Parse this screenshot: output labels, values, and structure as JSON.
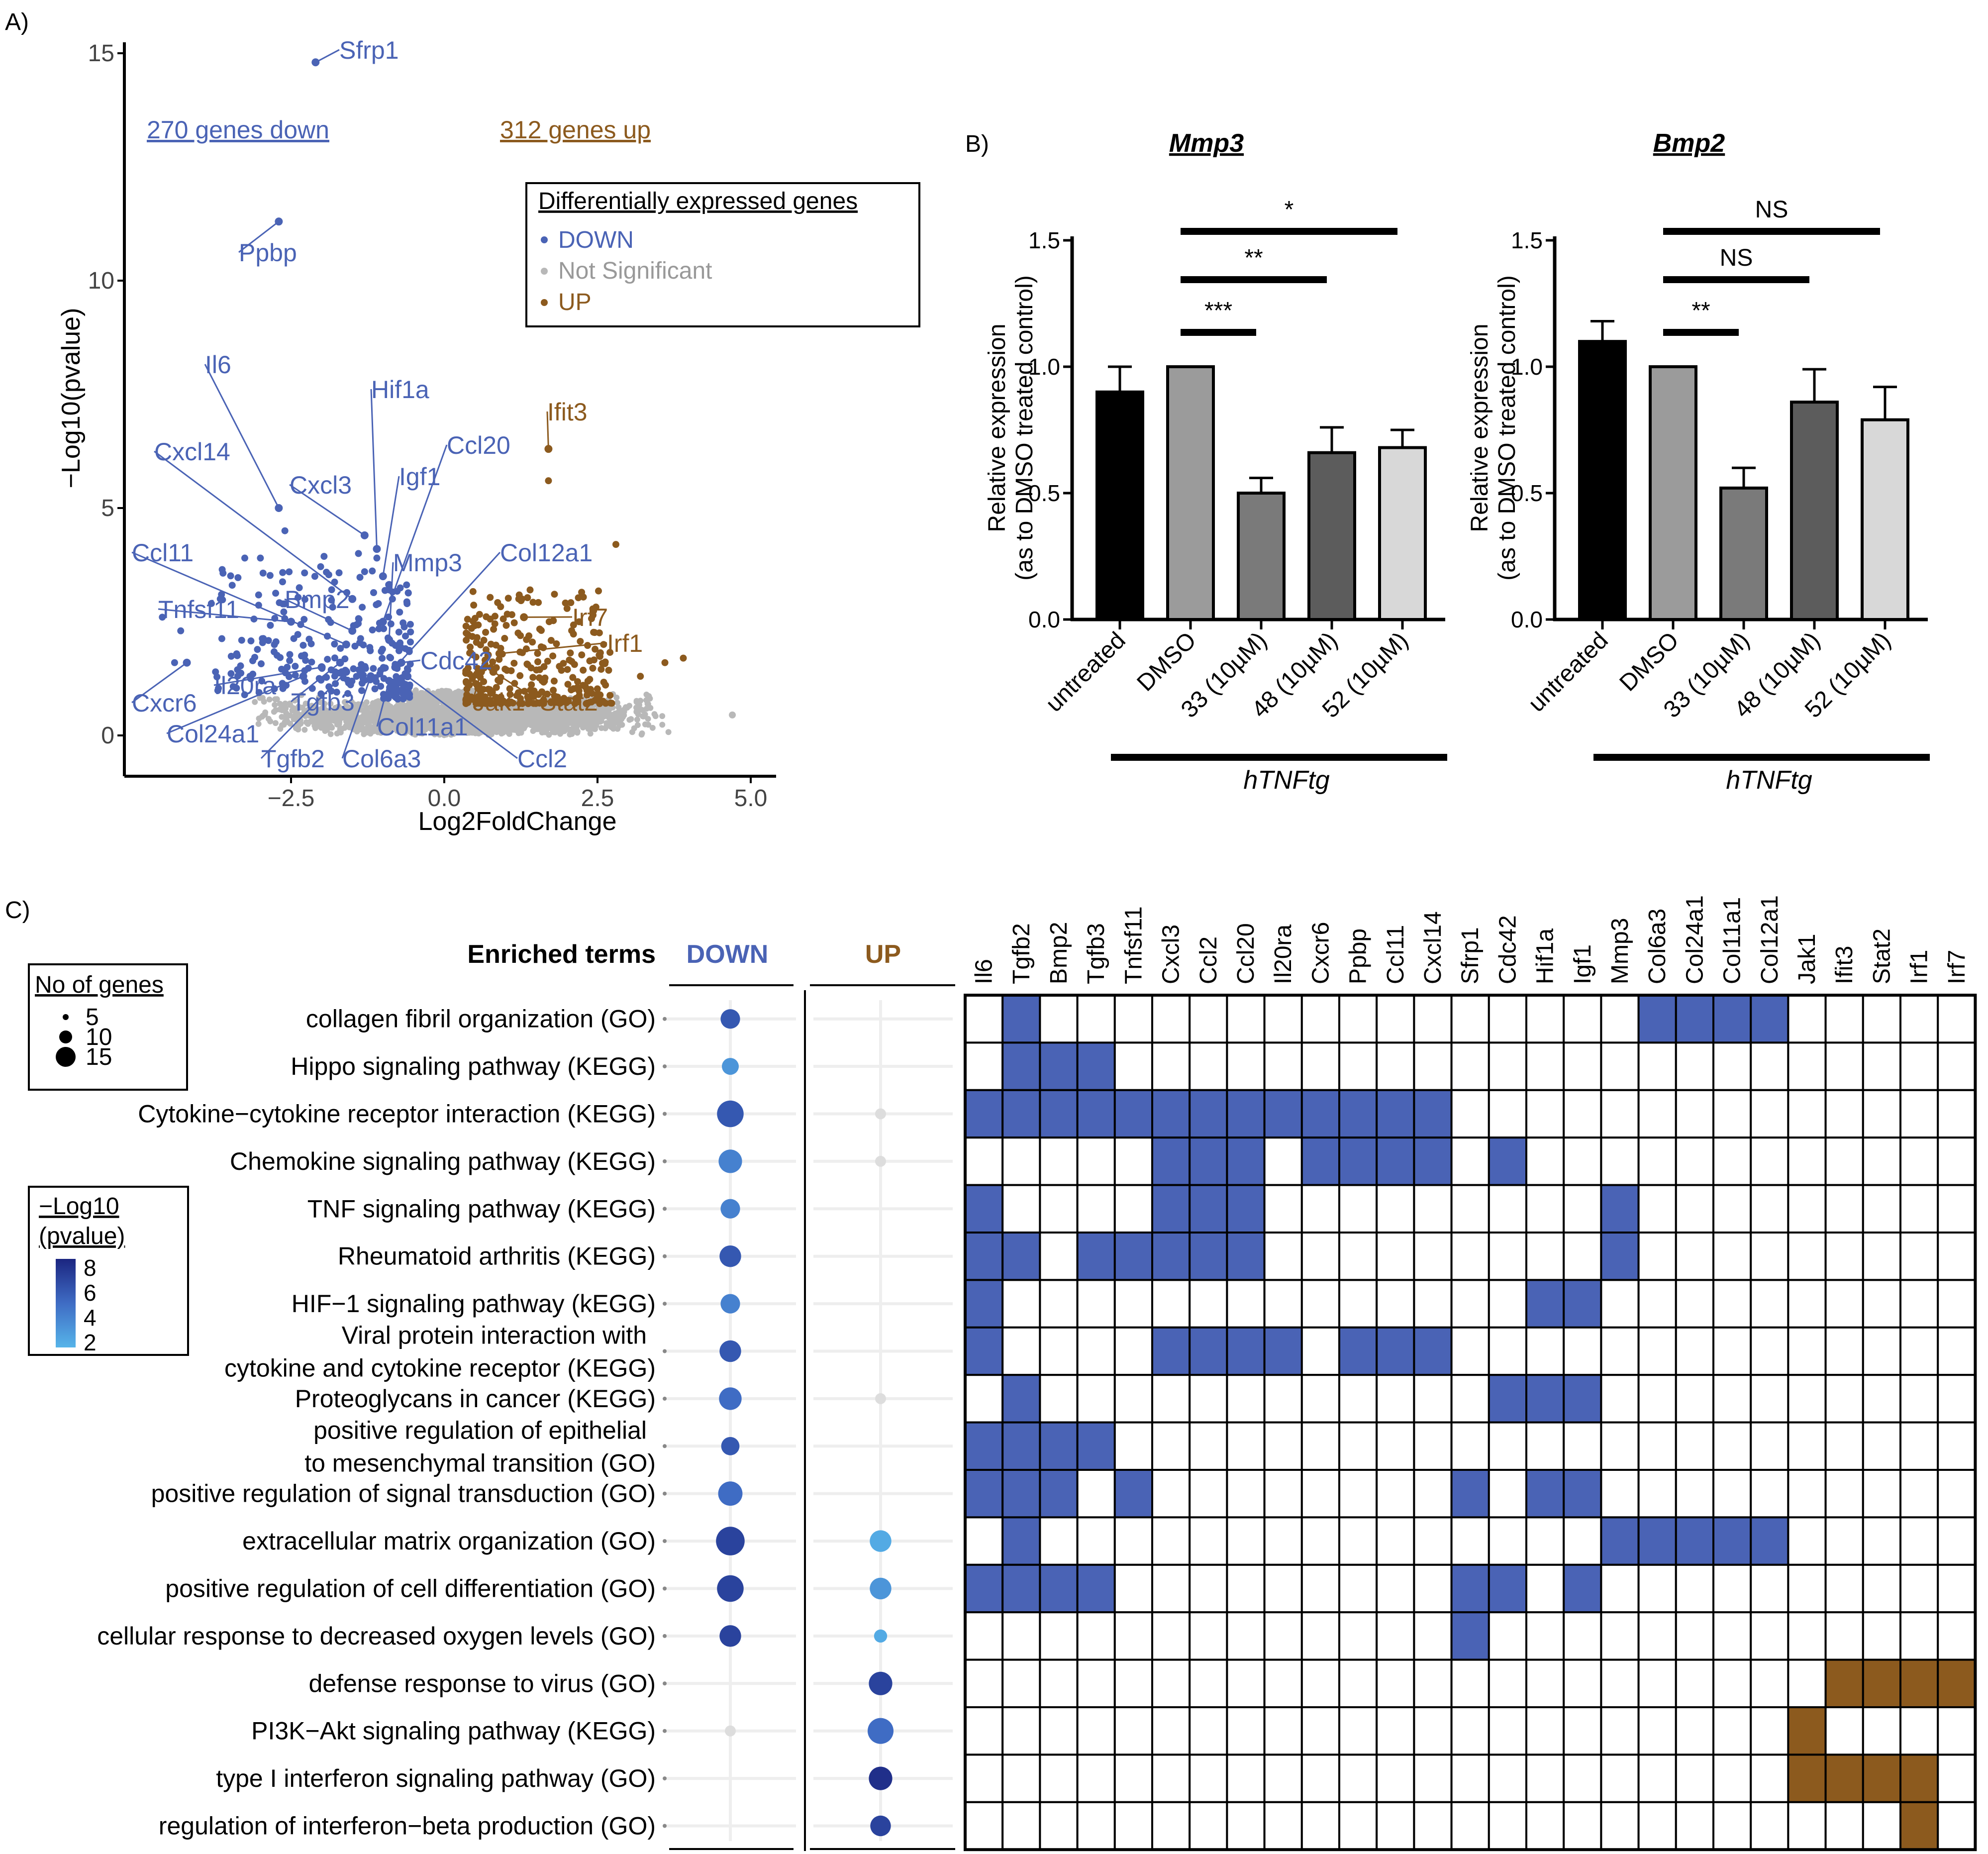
{
  "colors": {
    "down": "#4a63b5",
    "up": "#8c5a1e",
    "ns": "#b8b8b8",
    "black": "#000000"
  },
  "panel_labels": {
    "a": "A)",
    "b": "B)",
    "c": "C)"
  },
  "chart_data": [
    {
      "id": "volcano",
      "type": "scatter",
      "xlabel": "Log2FoldChange",
      "ylabel": "−Log10(pvalue)",
      "xticks": [
        "−2.5",
        "0.0",
        "2.5",
        "5.0"
      ],
      "yticks": [
        "0",
        "5",
        "10",
        "15"
      ],
      "xlim": [
        -5.2,
        5.5
      ],
      "ylim": [
        0,
        15.2
      ],
      "down_count_label": "270 genes down",
      "up_count_label": "312 genes up",
      "legend": {
        "title": "Differentially expressed genes",
        "items": [
          "DOWN",
          "Not Significant",
          "UP"
        ]
      },
      "labeled_genes": [
        {
          "name": "Sfrp1",
          "group": "down",
          "x": -2.1,
          "y": 14.8
        },
        {
          "name": "Ppbp",
          "group": "down",
          "x": -2.7,
          "y": 11.3
        },
        {
          "name": "Il6",
          "group": "down",
          "x": -2.7,
          "y": 5.0
        },
        {
          "name": "Hif1a",
          "group": "down",
          "x": -1.1,
          "y": 4.1
        },
        {
          "name": "Cxcl14",
          "group": "down",
          "x": -1.5,
          "y": 3.0
        },
        {
          "name": "Cxcl3",
          "group": "down",
          "x": -1.3,
          "y": 4.4
        },
        {
          "name": "Igf1",
          "group": "down",
          "x": -1.0,
          "y": 3.5
        },
        {
          "name": "Ccl20",
          "group": "down",
          "x": -1.0,
          "y": 2.5
        },
        {
          "name": "Mmp3",
          "group": "down",
          "x": -0.9,
          "y": 2.1
        },
        {
          "name": "Ccl11",
          "group": "down",
          "x": -1.6,
          "y": 2.0
        },
        {
          "name": "Bmp2",
          "group": "down",
          "x": -1.5,
          "y": 2.3
        },
        {
          "name": "Tnfsf11",
          "group": "down",
          "x": -2.5,
          "y": 2.5
        },
        {
          "name": "Il20ra",
          "group": "down",
          "x": -2.0,
          "y": 1.5
        },
        {
          "name": "Tgfb3",
          "group": "down",
          "x": -1.7,
          "y": 1.6
        },
        {
          "name": "Cxcr6",
          "group": "down",
          "x": -4.2,
          "y": 1.6
        },
        {
          "name": "Col24a1",
          "group": "down",
          "x": -2.3,
          "y": 1.3
        },
        {
          "name": "Tgfb2",
          "group": "down",
          "x": -1.6,
          "y": 1.4
        },
        {
          "name": "Col6a3",
          "group": "down",
          "x": -1.2,
          "y": 1.3
        },
        {
          "name": "Col11a1",
          "group": "down",
          "x": -0.9,
          "y": 1.2
        },
        {
          "name": "Col12a1",
          "group": "down",
          "x": -0.8,
          "y": 1.5
        },
        {
          "name": "Cdc42",
          "group": "down",
          "x": -0.7,
          "y": 1.6
        },
        {
          "name": "Ccl2",
          "group": "down",
          "x": -0.6,
          "y": 1.3
        },
        {
          "name": "Ifit3",
          "group": "up",
          "x": 1.7,
          "y": 6.3
        },
        {
          "name": "Irf7",
          "group": "up",
          "x": 1.3,
          "y": 2.6
        },
        {
          "name": "Irf1",
          "group": "up",
          "x": 0.9,
          "y": 1.8
        },
        {
          "name": "Jak1",
          "group": "up",
          "x": 0.6,
          "y": 1.4
        },
        {
          "name": "Stat2",
          "group": "up",
          "x": 0.8,
          "y": 1.4
        }
      ]
    },
    {
      "id": "mmp3",
      "type": "bar",
      "title": "Mmp3",
      "ylabel": "Relative expression",
      "ylabel2": "(as to DMSO treated control)",
      "categories": [
        "untreated",
        "DMSO",
        "33 (10µM)",
        "48 (10µM)",
        "52 (10µM)"
      ],
      "values": [
        0.9,
        1.0,
        0.5,
        0.66,
        0.68
      ],
      "errors": [
        0.1,
        0.0,
        0.06,
        0.1,
        0.07
      ],
      "yticks": [
        "0.0",
        "0.5",
        "1.0",
        "1.5"
      ],
      "ylim": [
        0,
        1.55
      ],
      "group_label": "hTNFtg",
      "significance": [
        {
          "from": 1,
          "to": 4,
          "label": "*"
        },
        {
          "from": 1,
          "to": 3,
          "label": "**"
        },
        {
          "from": 1,
          "to": 2,
          "label": "***"
        }
      ]
    },
    {
      "id": "bmp2",
      "type": "bar",
      "title": "Bmp2",
      "ylabel": "Relative expression",
      "ylabel2": "(as to DMSO treated control)",
      "categories": [
        "untreated",
        "DMSO",
        "33 (10µM)",
        "48 (10µM)",
        "52 (10µM)"
      ],
      "values": [
        1.1,
        1.0,
        0.52,
        0.86,
        0.79
      ],
      "errors": [
        0.08,
        0.0,
        0.08,
        0.13,
        0.13
      ],
      "yticks": [
        "0.0",
        "0.5",
        "1.0",
        "1.5"
      ],
      "ylim": [
        0,
        1.55
      ],
      "group_label": "hTNFtg",
      "significance": [
        {
          "from": 1,
          "to": 4,
          "label": "NS"
        },
        {
          "from": 1,
          "to": 3,
          "label": "NS"
        },
        {
          "from": 1,
          "to": 2,
          "label": "**"
        }
      ]
    },
    {
      "id": "enrichment",
      "type": "heatmap",
      "terms_header": "Enriched terms",
      "col_down": "DOWN",
      "col_up": "UP",
      "size_legend": {
        "title": "No of genes",
        "values": [
          5,
          10,
          15
        ]
      },
      "color_legend": {
        "title1": "−Log10",
        "title2": "(pvalue)",
        "values": [
          8,
          6,
          4,
          2
        ]
      },
      "genes": [
        "Il6",
        "Tgfb2",
        "Bmp2",
        "Tgfb3",
        "Tnfsf11",
        "Cxcl3",
        "Ccl2",
        "Ccl20",
        "Il20ra",
        "Cxcr6",
        "Ppbp",
        "Ccl11",
        "Cxcl14",
        "Sfrp1",
        "Cdc42",
        "Hif1a",
        "Igf1",
        "Mmp3",
        "Col6a3",
        "Col24a1",
        "Col11a1",
        "Col12a1",
        "Jak1",
        "Ifit3",
        "Stat2",
        "Irf1",
        "Irf7"
      ],
      "terms": [
        {
          "label": [
            "collagen fibril organization (GO)"
          ],
          "down": {
            "n": 5,
            "p": 6
          },
          "up": null,
          "genes": [
            "Tgfb2",
            "Col6a3",
            "Col24a1",
            "Col11a1",
            "Col12a1"
          ],
          "dir": "down"
        },
        {
          "label": [
            "Hippo signaling pathway (KEGG)"
          ],
          "down": {
            "n": 3,
            "p": 3
          },
          "up": null,
          "genes": [
            "Tgfb2",
            "Bmp2",
            "Tgfb3"
          ],
          "dir": "down"
        },
        {
          "label": [
            "Cytokine−cytokine receptor interaction (KEGG)"
          ],
          "down": {
            "n": 13,
            "p": 6
          },
          "up": {
            "n": 0,
            "p": 0
          },
          "genes": [
            "Il6",
            "Tgfb2",
            "Bmp2",
            "Tgfb3",
            "Tnfsf11",
            "Cxcl3",
            "Ccl2",
            "Ccl20",
            "Il20ra",
            "Cxcr6",
            "Ppbp",
            "Ccl11",
            "Cxcl14"
          ],
          "dir": "down"
        },
        {
          "label": [
            "Chemokine signaling pathway (KEGG)"
          ],
          "down": {
            "n": 9,
            "p": 4
          },
          "up": {
            "n": 0,
            "p": 0
          },
          "genes": [
            "Cxcl3",
            "Ccl2",
            "Ccl20",
            "Cxcr6",
            "Ppbp",
            "Ccl11",
            "Cxcl14",
            "Cdc42"
          ],
          "dir": "down"
        },
        {
          "label": [
            "TNF signaling pathway (KEGG)"
          ],
          "down": {
            "n": 5,
            "p": 4
          },
          "up": null,
          "genes": [
            "Il6",
            "Cxcl3",
            "Ccl2",
            "Ccl20",
            "Mmp3"
          ],
          "dir": "down"
        },
        {
          "label": [
            "Rheumatoid arthritis (KEGG)"
          ],
          "down": {
            "n": 7,
            "p": 6
          },
          "up": null,
          "genes": [
            "Il6",
            "Tgfb2",
            "Tgfb3",
            "Tnfsf11",
            "Cxcl3",
            "Ccl2",
            "Ccl20",
            "Mmp3"
          ],
          "dir": "down"
        },
        {
          "label": [
            "HIF−1 signaling pathway (kEGG)"
          ],
          "down": {
            "n": 5,
            "p": 4
          },
          "up": null,
          "genes": [
            "Il6",
            "Hif1a",
            "Igf1"
          ],
          "dir": "down"
        },
        {
          "label": [
            "Viral protein interaction with",
            "cytokine and cytokine receptor (KEGG)"
          ],
          "down": {
            "n": 7,
            "p": 6
          },
          "up": null,
          "genes": [
            "Il6",
            "Cxcl3",
            "Ccl2",
            "Ccl20",
            "Il20ra",
            "Ppbp",
            "Ccl11",
            "Cxcl14"
          ],
          "dir": "down"
        },
        {
          "label": [
            "Proteoglycans in cancer (KEGG)"
          ],
          "down": {
            "n": 8,
            "p": 5
          },
          "up": {
            "n": 0,
            "p": 0
          },
          "genes": [
            "Tgfb2",
            "Cdc42",
            "Hif1a",
            "Igf1"
          ],
          "dir": "down"
        },
        {
          "label": [
            "positive regulation of epithelial",
            "to mesenchymal transition (GO)"
          ],
          "down": {
            "n": 4,
            "p": 6
          },
          "up": null,
          "genes": [
            "Il6",
            "Tgfb2",
            "Bmp2",
            "Tgfb3"
          ],
          "dir": "down"
        },
        {
          "label": [
            "positive regulation of signal transduction (GO)"
          ],
          "down": {
            "n": 10,
            "p": 5
          },
          "up": null,
          "genes": [
            "Il6",
            "Tgfb2",
            "Bmp2",
            "Tnfsf11",
            "Sfrp1",
            "Hif1a",
            "Igf1"
          ],
          "dir": "down"
        },
        {
          "label": [
            "extracellular matrix organization (GO)"
          ],
          "down": {
            "n": 16,
            "p": 7
          },
          "up": {
            "n": 7,
            "p": 2
          },
          "genes": [
            "Tgfb2",
            "Mmp3",
            "Col6a3",
            "Col24a1",
            "Col11a1",
            "Col12a1"
          ],
          "dir": "down"
        },
        {
          "label": [
            "positive regulation of cell differentiation (GO)"
          ],
          "down": {
            "n": 13,
            "p": 7
          },
          "up": {
            "n": 7,
            "p": 3
          },
          "genes": [
            "Il6",
            "Tgfb2",
            "Bmp2",
            "Tgfb3",
            "Sfrp1",
            "Cdc42",
            "Igf1"
          ],
          "dir": "down"
        },
        {
          "label": [
            "cellular response to decreased oxygen levels (GO)"
          ],
          "down": {
            "n": 7,
            "p": 7
          },
          "up": {
            "n": 1,
            "p": 2
          },
          "genes": [
            "Sfrp1"
          ],
          "dir": "down"
        },
        {
          "label": [
            "defense response to virus (GO)"
          ],
          "down": null,
          "up": {
            "n": 9,
            "p": 7
          },
          "genes": [
            "Ifit3",
            "Stat2",
            "Irf1",
            "Irf7"
          ],
          "dir": "up"
        },
        {
          "label": [
            "PI3K−Akt signaling pathway (KEGG)"
          ],
          "down": {
            "n": 0,
            "p": 0
          },
          "up": {
            "n": 12,
            "p": 5
          },
          "genes": [
            "Jak1"
          ],
          "dir": "up"
        },
        {
          "label": [
            "type I interferon signaling pathway (GO)"
          ],
          "down": null,
          "up": {
            "n": 9,
            "p": 8
          },
          "genes": [
            "Jak1",
            "Ifit3",
            "Stat2",
            "Irf1"
          ],
          "dir": "up"
        },
        {
          "label": [
            "regulation of interferon−beta production (GO)"
          ],
          "down": null,
          "up": {
            "n": 6,
            "p": 7
          },
          "genes": [
            "Irf1"
          ],
          "dir": "up"
        }
      ]
    }
  ]
}
